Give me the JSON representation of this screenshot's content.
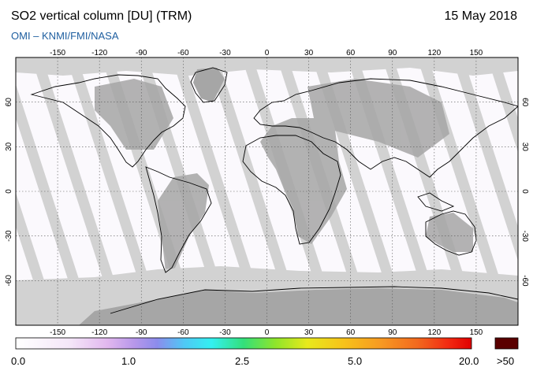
{
  "header": {
    "title": "SO2 vertical column [DU] (TRM)",
    "date": "15 May 2018",
    "credit": "OMI  –  KNMI/FMI/NASA"
  },
  "map": {
    "lon_ticks": [
      "-150",
      "-120",
      "-90",
      "-60",
      "-30",
      "0",
      "30",
      "60",
      "90",
      "120",
      "150"
    ],
    "lat_ticks": [
      "60",
      "30",
      "0",
      "-30",
      "-60"
    ]
  },
  "colorbar": {
    "labels": [
      "0.0",
      "1.0",
      "2.5",
      "5.0",
      "20.0"
    ],
    "overflow_label": ">50",
    "overflow_color": "#5a0000"
  },
  "colors": {
    "no_data": "#d2d2d2",
    "land_no_data": "#a6a6a6",
    "swath_bg": "#fbf9fd",
    "coast": "#000000",
    "credit": "#1f5fa0"
  }
}
